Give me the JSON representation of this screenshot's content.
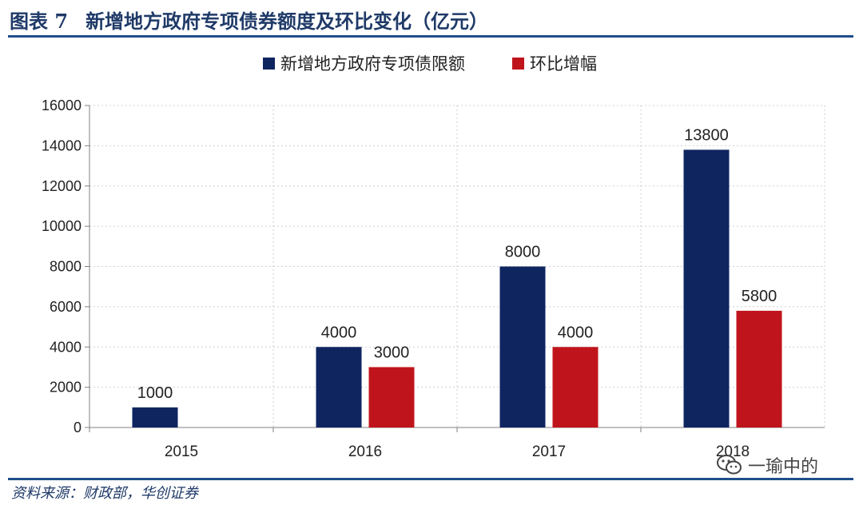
{
  "header": {
    "fig_num": "图表 7",
    "title": "新增地方政府专项债券额度及环比变化（亿元）"
  },
  "source": "资料来源：财政部，华创证券",
  "watermark": {
    "icon": "wechat-icon",
    "text": "一瑜中的"
  },
  "colors": {
    "accent": "#1f4e8c",
    "series1": "#0f2560",
    "series2": "#c0141c"
  },
  "chart_data": {
    "type": "bar",
    "title": "",
    "xlabel": "",
    "ylabel": "",
    "categories": [
      "2015",
      "2016",
      "2017",
      "2018"
    ],
    "series": [
      {
        "name": "新增地方政府专项债限额",
        "values": [
          1000,
          4000,
          8000,
          13800
        ]
      },
      {
        "name": "环比增幅",
        "values": [
          null,
          3000,
          4000,
          5800
        ]
      }
    ],
    "ylim": [
      0,
      16000
    ],
    "yticks": [
      0,
      2000,
      4000,
      6000,
      8000,
      10000,
      12000,
      14000,
      16000
    ],
    "grid": true,
    "legend": "top-center"
  }
}
